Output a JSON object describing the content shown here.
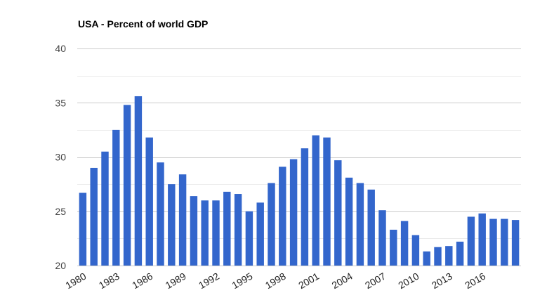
{
  "colors": {
    "bar": "#3366cc",
    "gridline_major": "#cccccc",
    "gridline_minor": "#ebebeb",
    "axis_text": "#444444",
    "background": "#ffffff"
  },
  "chart_data": {
    "type": "bar",
    "title": "USA - Percent of world GDP",
    "xlabel": "",
    "ylabel": "",
    "ylim": [
      20,
      40
    ],
    "yticks": [
      20,
      25,
      30,
      35,
      40
    ],
    "grid": true,
    "legend": "none",
    "categories": [
      "1980",
      "1981",
      "1982",
      "1983",
      "1984",
      "1985",
      "1986",
      "1987",
      "1988",
      "1989",
      "1990",
      "1991",
      "1992",
      "1993",
      "1994",
      "1995",
      "1996",
      "1997",
      "1998",
      "1999",
      "2000",
      "2001",
      "2002",
      "2003",
      "2004",
      "2005",
      "2006",
      "2007",
      "2008",
      "2009",
      "2010",
      "2011",
      "2012",
      "2013",
      "2014",
      "2015",
      "2016",
      "2017",
      "2018",
      "2019"
    ],
    "x_tick_labels": [
      "1980",
      "1983",
      "1986",
      "1989",
      "1992",
      "1995",
      "1998",
      "2001",
      "2004",
      "2007",
      "2010",
      "2013",
      "2016"
    ],
    "series": [
      {
        "name": "Percent of world GDP",
        "values": [
          26.7,
          29.0,
          30.5,
          32.5,
          34.8,
          35.6,
          31.8,
          29.5,
          27.5,
          28.4,
          26.4,
          26.0,
          26.0,
          26.8,
          26.6,
          25.0,
          25.8,
          27.6,
          29.1,
          29.8,
          30.8,
          32.0,
          31.8,
          29.7,
          28.1,
          27.6,
          27.0,
          25.1,
          23.3,
          24.1,
          22.8,
          21.3,
          21.7,
          21.8,
          22.2,
          24.5,
          24.8,
          24.3,
          24.3,
          24.2
        ]
      }
    ]
  }
}
